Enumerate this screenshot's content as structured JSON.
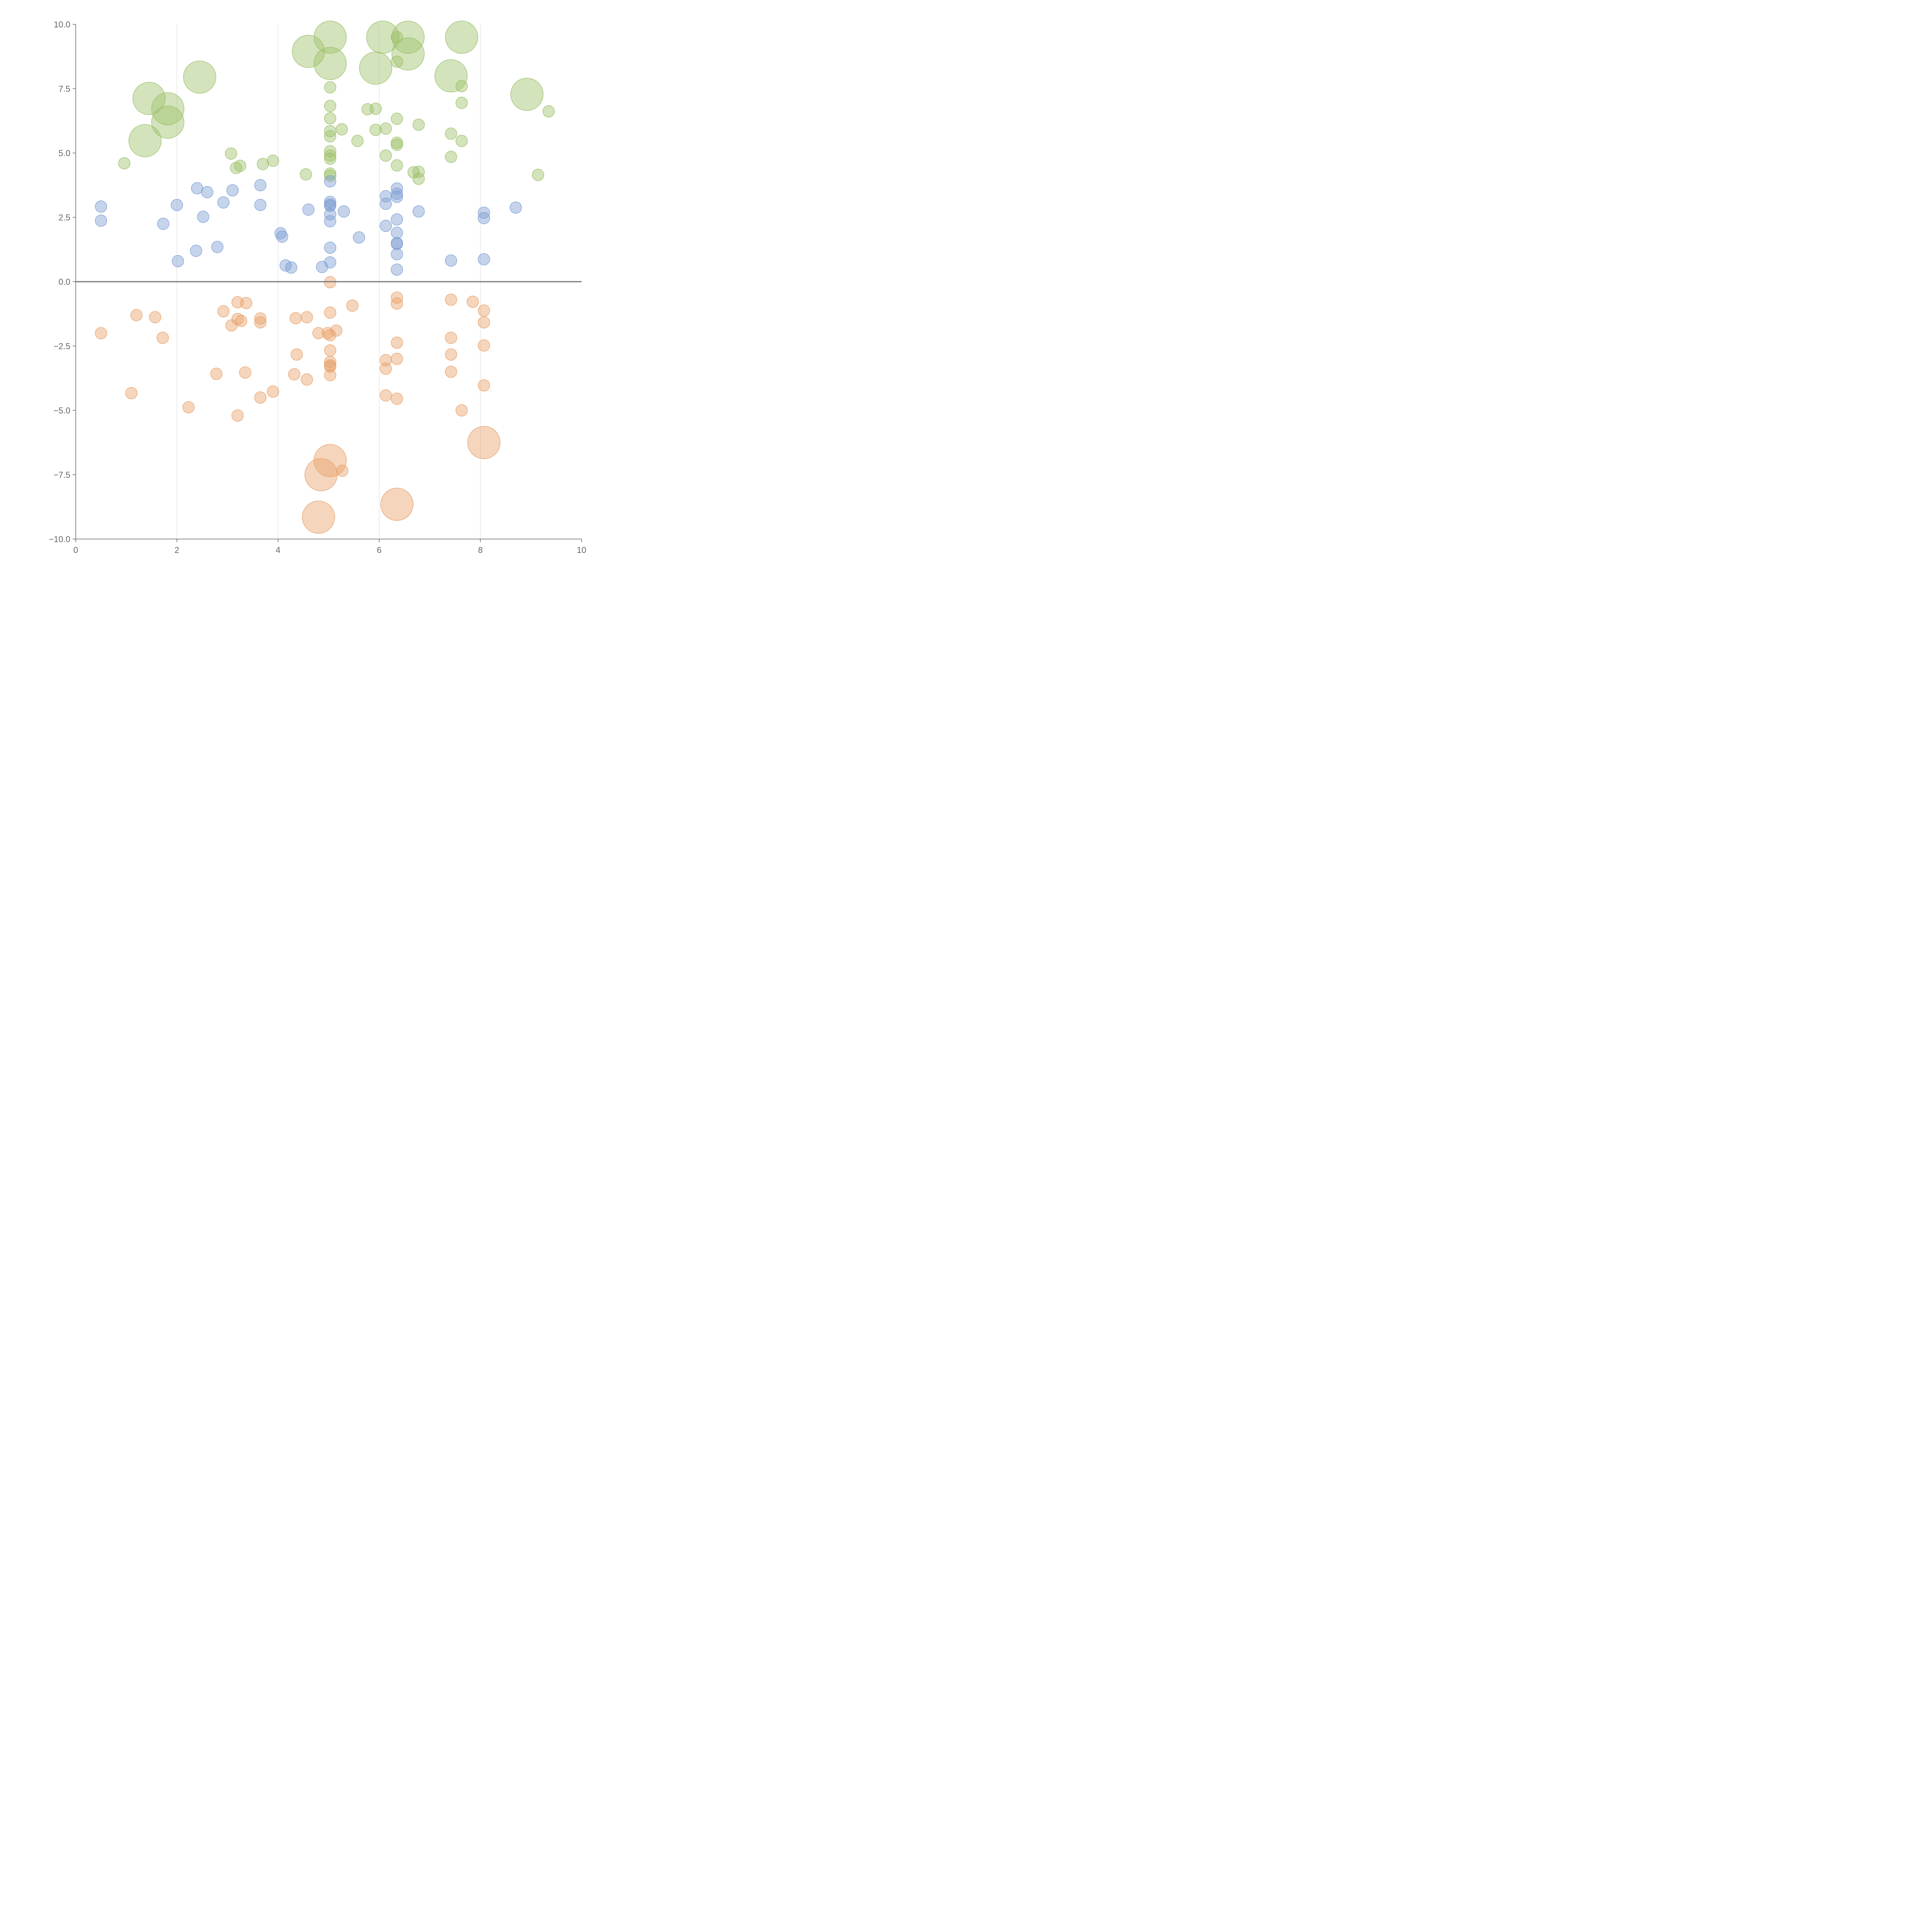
{
  "chart_data": {
    "type": "scatter",
    "title": "",
    "xlabel": "",
    "ylabel": "",
    "xlim": [
      0,
      10
    ],
    "ylim": [
      -10,
      10
    ],
    "grid": "vertical",
    "x_ticks": [
      "0",
      "2",
      "4",
      "6",
      "8",
      "10"
    ],
    "y_ticks": [
      "10.0",
      "7.5",
      "5.0",
      "2.5",
      "0.0",
      "−2.5",
      "−5.0",
      "−7.5",
      "−10.0"
    ],
    "colors": {
      "green": "#9dc06a",
      "blue": "#7f9fd3",
      "orange": "#e9a26b"
    },
    "series": [
      {
        "color": "green",
        "points": [
          [
            2.45,
            7.95,
            42
          ],
          [
            1.45,
            7.12,
            42
          ],
          [
            1.82,
            6.72,
            42
          ],
          [
            1.82,
            6.2,
            42
          ],
          [
            1.37,
            5.48,
            42
          ],
          [
            0.96,
            4.6,
            15
          ],
          [
            3.07,
            4.98,
            15
          ],
          [
            3.17,
            4.42,
            15
          ],
          [
            3.25,
            4.5,
            15
          ],
          [
            3.7,
            4.57,
            15
          ],
          [
            3.9,
            4.7,
            15
          ],
          [
            4.55,
            4.17,
            15
          ],
          [
            4.6,
            8.95,
            42
          ],
          [
            5.03,
            9.5,
            42
          ],
          [
            5.03,
            8.48,
            42
          ],
          [
            5.03,
            7.55,
            15
          ],
          [
            5.03,
            6.83,
            15
          ],
          [
            5.03,
            6.35,
            15
          ],
          [
            5.03,
            5.85,
            15
          ],
          [
            5.03,
            5.65,
            15
          ],
          [
            5.03,
            5.07,
            15
          ],
          [
            5.03,
            4.9,
            15
          ],
          [
            5.03,
            4.78,
            15
          ],
          [
            5.03,
            4.2,
            15
          ],
          [
            5.03,
            4.12,
            15
          ],
          [
            5.26,
            5.92,
            15
          ],
          [
            5.57,
            5.47,
            15
          ],
          [
            5.77,
            6.7,
            15
          ],
          [
            5.93,
            6.72,
            15
          ],
          [
            5.93,
            5.9,
            15
          ],
          [
            5.93,
            8.3,
            42
          ],
          [
            6.07,
            9.5,
            42
          ],
          [
            6.13,
            5.95,
            15
          ],
          [
            6.13,
            4.9,
            15
          ],
          [
            6.35,
            9.5,
            15
          ],
          [
            6.35,
            8.55,
            15
          ],
          [
            6.35,
            6.33,
            15
          ],
          [
            6.35,
            5.4,
            15
          ],
          [
            6.35,
            5.32,
            15
          ],
          [
            6.35,
            4.52,
            15
          ],
          [
            6.57,
            9.5,
            42
          ],
          [
            6.57,
            8.85,
            42
          ],
          [
            6.68,
            4.25,
            15
          ],
          [
            6.78,
            4.27,
            15
          ],
          [
            6.78,
            4.0,
            15
          ],
          [
            6.78,
            6.1,
            15
          ],
          [
            7.42,
            8.0,
            42
          ],
          [
            7.42,
            5.75,
            15
          ],
          [
            7.42,
            4.85,
            15
          ],
          [
            7.63,
            9.5,
            42
          ],
          [
            7.63,
            7.6,
            15
          ],
          [
            7.63,
            6.95,
            15
          ],
          [
            7.63,
            5.47,
            15
          ],
          [
            8.92,
            7.28,
            42
          ],
          [
            9.14,
            4.15,
            15
          ],
          [
            9.35,
            6.62,
            15
          ]
        ]
      },
      {
        "color": "blue",
        "points": [
          [
            0.5,
            2.92,
            15
          ],
          [
            0.5,
            2.37,
            15
          ],
          [
            1.73,
            2.25,
            15
          ],
          [
            2.0,
            2.98,
            15
          ],
          [
            2.02,
            0.8,
            15
          ],
          [
            2.38,
            1.2,
            15
          ],
          [
            2.4,
            3.63,
            15
          ],
          [
            2.52,
            2.52,
            15
          ],
          [
            2.6,
            3.48,
            15
          ],
          [
            2.8,
            1.35,
            15
          ],
          [
            2.92,
            3.08,
            15
          ],
          [
            3.1,
            3.55,
            15
          ],
          [
            3.65,
            3.75,
            15
          ],
          [
            3.65,
            2.98,
            15
          ],
          [
            4.05,
            1.88,
            15
          ],
          [
            4.08,
            1.75,
            15
          ],
          [
            4.15,
            0.63,
            15
          ],
          [
            4.26,
            0.55,
            15
          ],
          [
            4.6,
            2.8,
            15
          ],
          [
            4.87,
            0.57,
            15
          ],
          [
            5.03,
            3.9,
            15
          ],
          [
            5.03,
            3.1,
            15
          ],
          [
            5.03,
            3.0,
            15
          ],
          [
            5.03,
            2.95,
            15
          ],
          [
            5.03,
            2.62,
            15
          ],
          [
            5.03,
            2.35,
            15
          ],
          [
            5.03,
            1.32,
            15
          ],
          [
            5.03,
            0.75,
            15
          ],
          [
            5.3,
            2.73,
            15
          ],
          [
            5.6,
            1.72,
            15
          ],
          [
            6.13,
            3.32,
            15
          ],
          [
            6.13,
            3.03,
            15
          ],
          [
            6.13,
            2.17,
            15
          ],
          [
            6.35,
            3.62,
            15
          ],
          [
            6.35,
            3.42,
            15
          ],
          [
            6.35,
            3.3,
            15
          ],
          [
            6.35,
            2.42,
            15
          ],
          [
            6.35,
            1.9,
            15
          ],
          [
            6.35,
            1.5,
            15
          ],
          [
            6.35,
            1.47,
            15
          ],
          [
            6.35,
            1.07,
            15
          ],
          [
            6.35,
            0.47,
            15
          ],
          [
            6.78,
            2.73,
            15
          ],
          [
            7.42,
            0.82,
            15
          ],
          [
            8.07,
            2.68,
            15
          ],
          [
            8.07,
            2.47,
            15
          ],
          [
            8.07,
            0.87,
            15
          ],
          [
            8.7,
            2.88,
            15
          ]
        ]
      },
      {
        "color": "orange",
        "points": [
          [
            0.5,
            -2.0,
            15
          ],
          [
            1.1,
            -4.33,
            15
          ],
          [
            1.2,
            -1.3,
            15
          ],
          [
            1.57,
            -1.38,
            15
          ],
          [
            1.72,
            -2.18,
            15
          ],
          [
            2.23,
            -4.88,
            15
          ],
          [
            2.78,
            -3.58,
            15
          ],
          [
            2.92,
            -1.15,
            15
          ],
          [
            3.08,
            -1.7,
            15
          ],
          [
            3.2,
            -0.8,
            15
          ],
          [
            3.2,
            -1.45,
            15
          ],
          [
            3.27,
            -1.52,
            15
          ],
          [
            3.2,
            -5.2,
            15
          ],
          [
            3.35,
            -3.53,
            15
          ],
          [
            3.37,
            -0.83,
            15
          ],
          [
            3.65,
            -1.43,
            15
          ],
          [
            3.65,
            -1.58,
            15
          ],
          [
            3.65,
            -4.5,
            15
          ],
          [
            3.9,
            -4.27,
            15
          ],
          [
            4.32,
            -3.6,
            15
          ],
          [
            4.35,
            -1.42,
            15
          ],
          [
            4.37,
            -2.83,
            15
          ],
          [
            4.57,
            -1.38,
            15
          ],
          [
            4.57,
            -3.8,
            15
          ],
          [
            4.8,
            -2.0,
            15
          ],
          [
            4.98,
            -2.0,
            15
          ],
          [
            5.03,
            -0.02,
            15
          ],
          [
            5.03,
            -1.2,
            15
          ],
          [
            5.03,
            -2.08,
            15
          ],
          [
            5.03,
            -2.67,
            15
          ],
          [
            5.03,
            -3.12,
            15
          ],
          [
            5.03,
            -3.25,
            15
          ],
          [
            5.03,
            -3.3,
            15
          ],
          [
            5.03,
            -3.63,
            15
          ],
          [
            5.15,
            -1.9,
            15
          ],
          [
            5.27,
            -7.35,
            15
          ],
          [
            5.47,
            -0.93,
            15
          ],
          [
            5.03,
            -6.95,
            42
          ],
          [
            4.85,
            -7.5,
            42
          ],
          [
            4.8,
            -9.15,
            42
          ],
          [
            6.13,
            -3.05,
            15
          ],
          [
            6.13,
            -3.38,
            15
          ],
          [
            6.13,
            -4.42,
            15
          ],
          [
            6.35,
            -0.62,
            15
          ],
          [
            6.35,
            -0.85,
            15
          ],
          [
            6.35,
            -2.37,
            15
          ],
          [
            6.35,
            -3.0,
            15
          ],
          [
            6.35,
            -4.55,
            15
          ],
          [
            6.35,
            -8.65,
            42
          ],
          [
            7.42,
            -0.7,
            15
          ],
          [
            7.42,
            -2.18,
            15
          ],
          [
            7.42,
            -2.83,
            15
          ],
          [
            7.42,
            -3.5,
            15
          ],
          [
            7.63,
            -5.0,
            15
          ],
          [
            7.85,
            -0.78,
            15
          ],
          [
            8.07,
            -1.12,
            15
          ],
          [
            8.07,
            -1.58,
            15
          ],
          [
            8.07,
            -2.48,
            15
          ],
          [
            8.07,
            -4.03,
            15
          ],
          [
            8.07,
            -6.25,
            42
          ]
        ]
      }
    ]
  }
}
